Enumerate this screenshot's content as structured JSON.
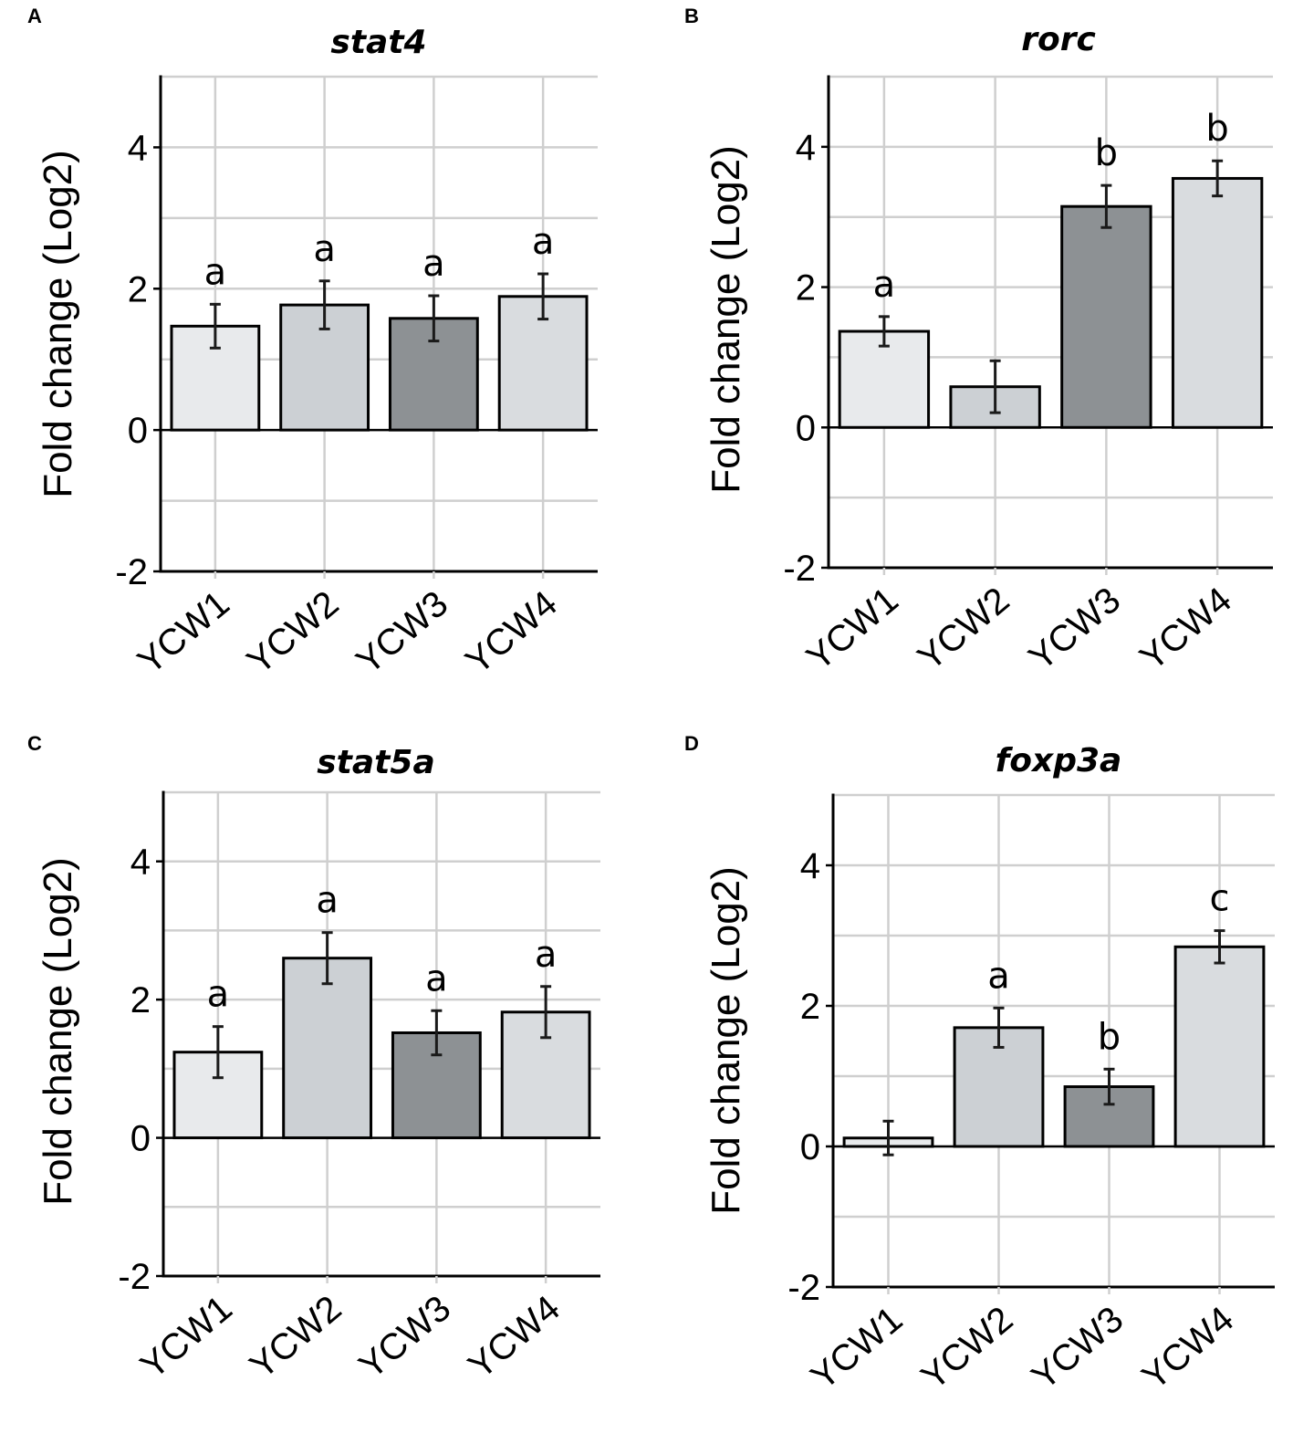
{
  "colors": {
    "grid": "#cfcfcf",
    "axis": "#000000",
    "errorbar": "#1a1a1a",
    "bar_fills": [
      "#e8eaec",
      "#ccd0d4",
      "#8d9194",
      "#d9dcdf"
    ]
  },
  "chart_data": [
    {
      "type": "bar",
      "panel": "A",
      "title": "stat4",
      "xlabel": "",
      "ylabel": "Fold change (Log2)",
      "ylim": [
        -2,
        5
      ],
      "yticks": [
        -2,
        0,
        2,
        4
      ],
      "grid": true,
      "categories": [
        "YCW1",
        "YCW2",
        "YCW3",
        "YCW4"
      ],
      "values": [
        1.47,
        1.77,
        1.58,
        1.89
      ],
      "errors": [
        0.31,
        0.34,
        0.32,
        0.32
      ],
      "significance": [
        "a",
        "a",
        "a",
        "a"
      ]
    },
    {
      "type": "bar",
      "panel": "B",
      "title": "rorc",
      "xlabel": "",
      "ylabel": "Fold change (Log2)",
      "ylim": [
        -2,
        5
      ],
      "yticks": [
        -2,
        0,
        2,
        4
      ],
      "grid": true,
      "categories": [
        "YCW1",
        "YCW2",
        "YCW3",
        "YCW4"
      ],
      "values": [
        1.37,
        0.58,
        3.15,
        3.55
      ],
      "errors": [
        0.21,
        0.37,
        0.3,
        0.25
      ],
      "significance": [
        "a",
        "",
        "b",
        "b"
      ]
    },
    {
      "type": "bar",
      "panel": "C",
      "title": "stat5a",
      "xlabel": "",
      "ylabel": "Fold change (Log2)",
      "ylim": [
        -2,
        5
      ],
      "yticks": [
        -2,
        0,
        2,
        4
      ],
      "grid": true,
      "categories": [
        "YCW1",
        "YCW2",
        "YCW3",
        "YCW4"
      ],
      "values": [
        1.24,
        2.6,
        1.52,
        1.82
      ],
      "errors": [
        0.37,
        0.37,
        0.32,
        0.37
      ],
      "significance": [
        "a",
        "a",
        "a",
        "a"
      ]
    },
    {
      "type": "bar",
      "panel": "D",
      "title": "foxp3a",
      "xlabel": "",
      "ylabel": "Fold change (Log2)",
      "ylim": [
        -2,
        5
      ],
      "yticks": [
        -2,
        0,
        2,
        4
      ],
      "grid": true,
      "categories": [
        "YCW1",
        "YCW2",
        "YCW3",
        "YCW4"
      ],
      "values": [
        0.12,
        1.69,
        0.85,
        2.84
      ],
      "errors": [
        0.24,
        0.28,
        0.25,
        0.23
      ],
      "significance": [
        "",
        "a",
        "b",
        "c"
      ]
    }
  ]
}
